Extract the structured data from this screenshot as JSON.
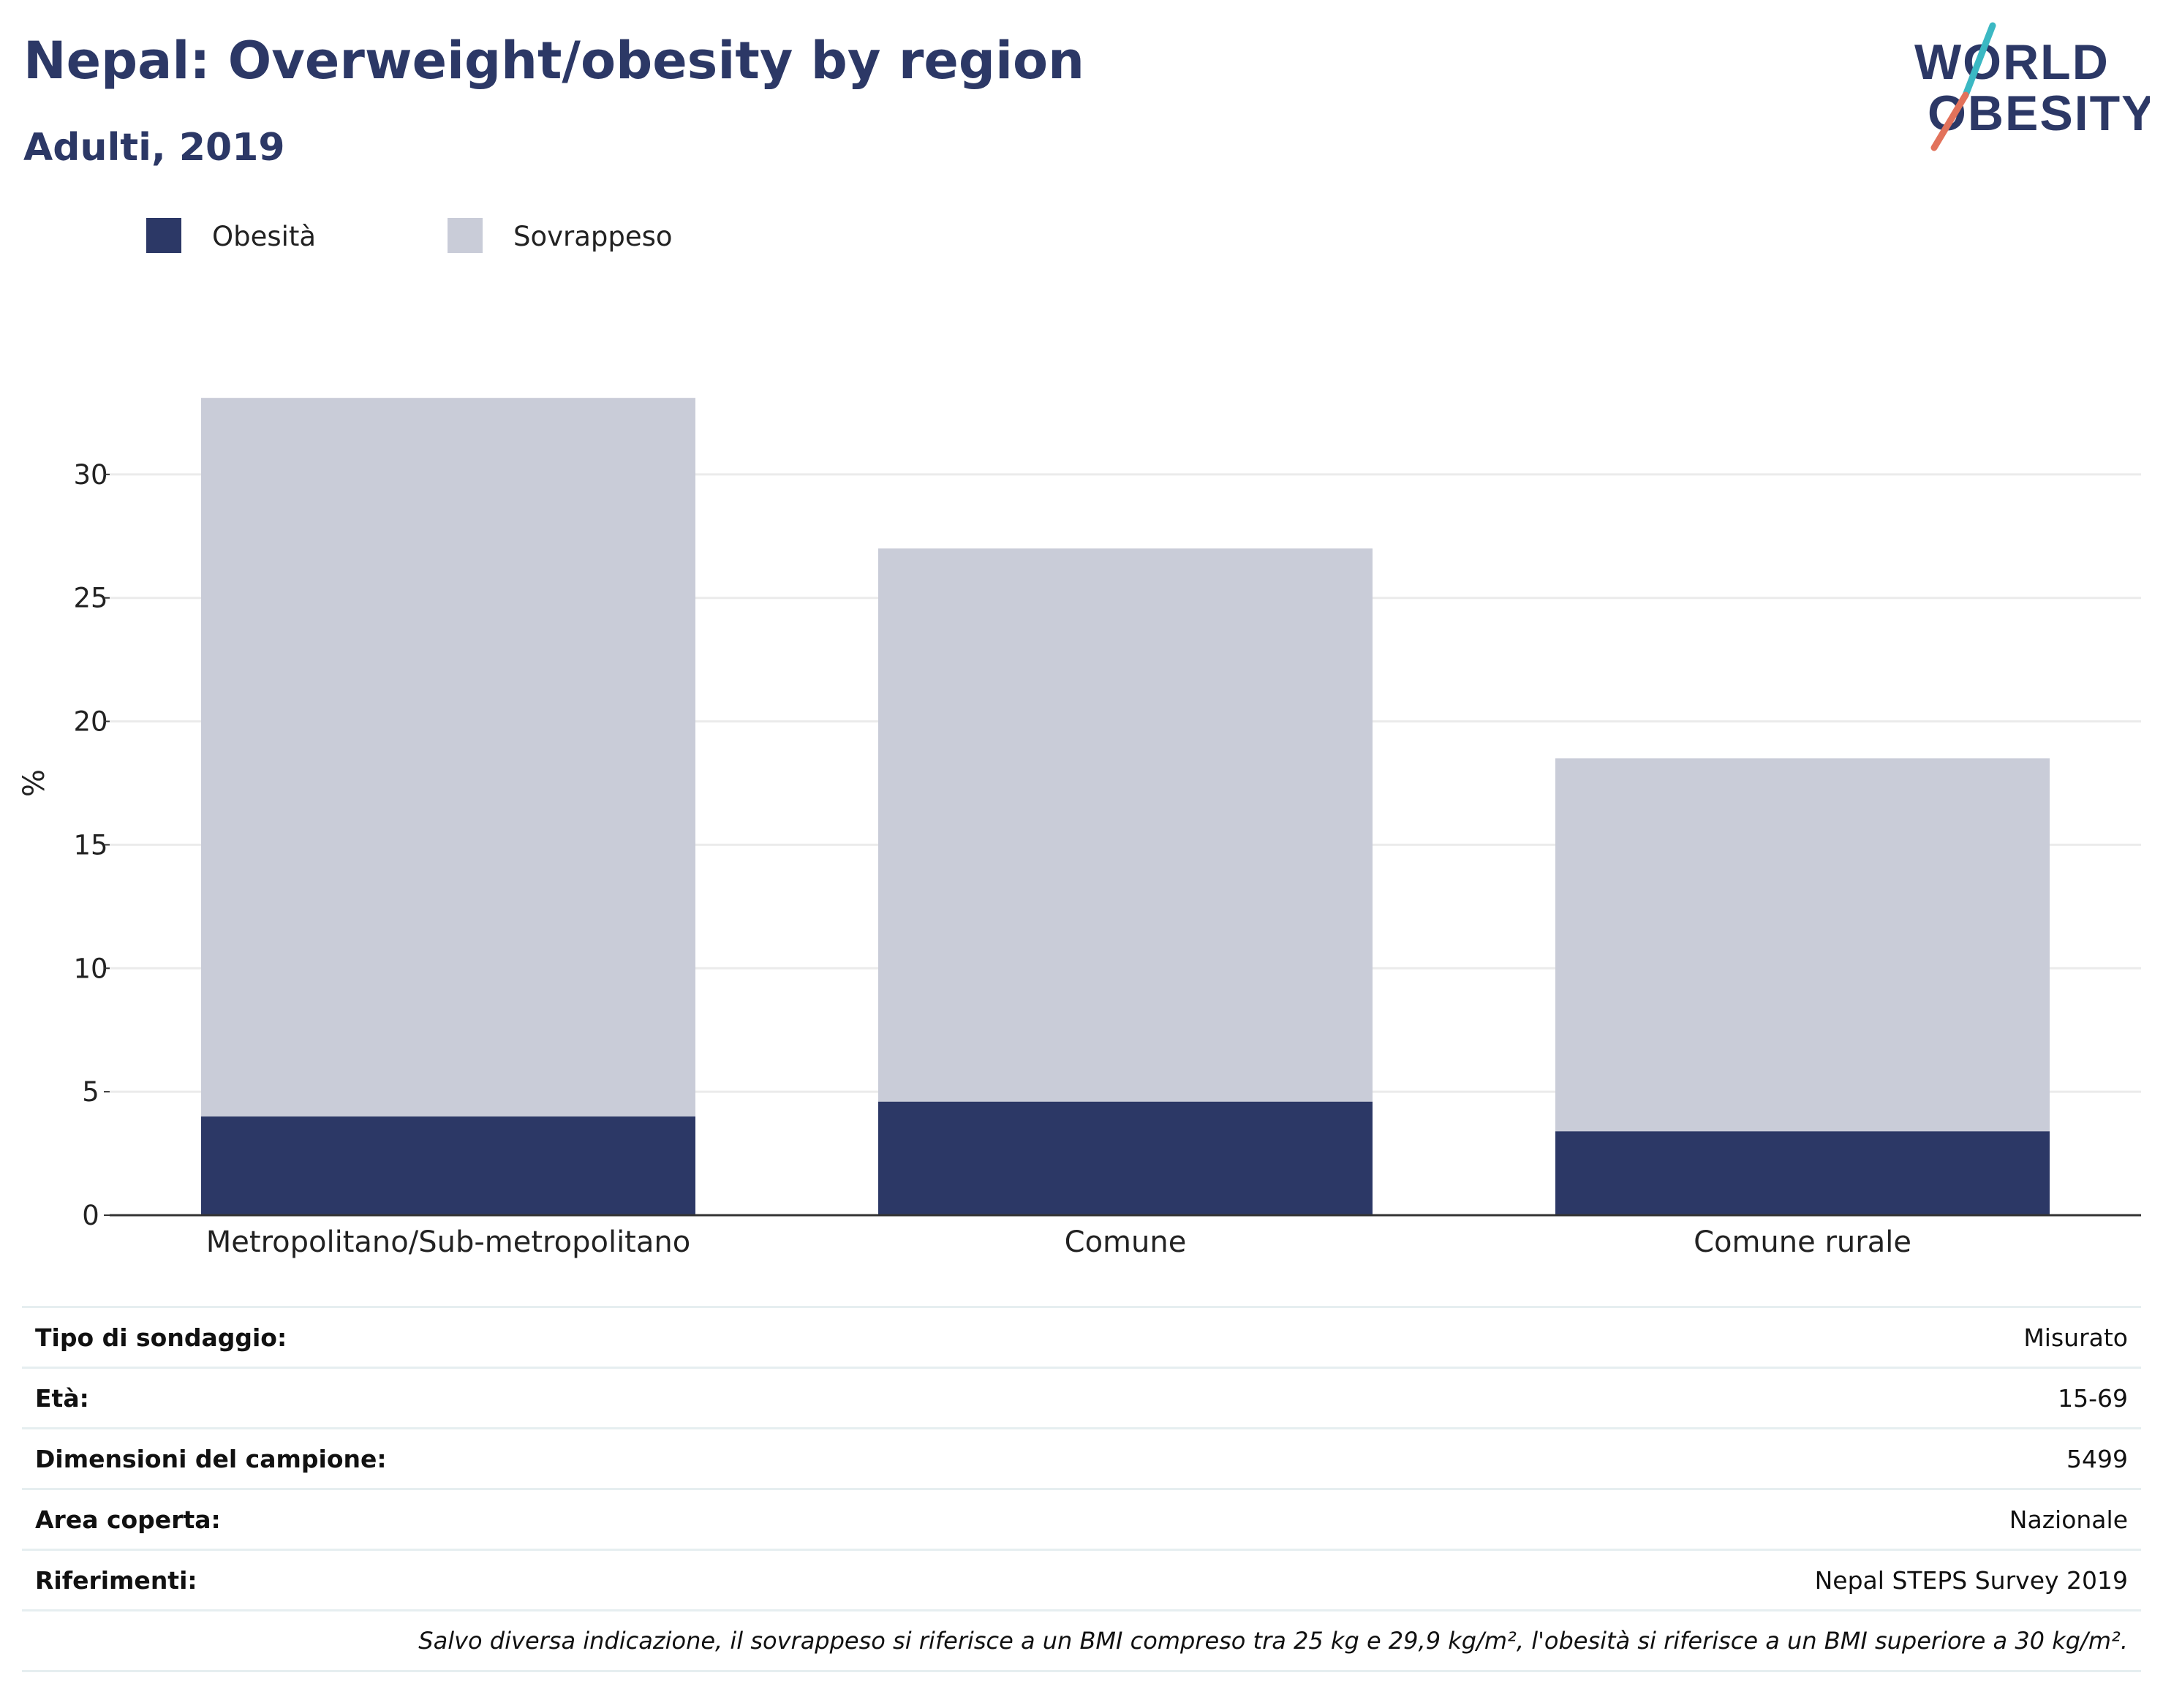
{
  "header": {
    "title": "Nepal: Overweight/obesity by region",
    "subtitle": "Adulti, 2019"
  },
  "logo": {
    "line1": "WORLD",
    "line2": "OBESITY",
    "colors": {
      "text": "#2c3866",
      "slash_top": "#3bb8c3",
      "slash_bottom": "#e2725b"
    }
  },
  "legend": {
    "items": [
      {
        "label": "Obesità",
        "color": "#2c3866"
      },
      {
        "label": "Sovrappeso",
        "color": "#c9ccd8"
      }
    ]
  },
  "chart_data": {
    "type": "bar",
    "stacked": true,
    "categories": [
      "Metropolitano/Sub-metropolitano",
      "Comune",
      "Comune rurale"
    ],
    "series": [
      {
        "name": "Obesità",
        "color": "#2c3866",
        "values": [
          4.0,
          4.6,
          3.4
        ]
      },
      {
        "name": "Sovrappeso",
        "color": "#c9ccd8",
        "values": [
          29.1,
          22.4,
          15.1
        ]
      }
    ],
    "ylabel": "%",
    "ylim": [
      0,
      35
    ],
    "yticks": [
      0,
      5,
      10,
      15,
      20,
      25,
      30
    ],
    "grid": true,
    "legend_position": "top-left"
  },
  "info_table": {
    "rows": [
      {
        "label": "Tipo di sondaggio:",
        "value": "Misurato"
      },
      {
        "label": "Età:",
        "value": "15-69"
      },
      {
        "label": "Dimensioni del campione:",
        "value": "5499"
      },
      {
        "label": "Area coperta:",
        "value": "Nazionale"
      },
      {
        "label": "Riferimenti:",
        "value": "Nepal STEPS Survey 2019"
      }
    ],
    "note": "Salvo diversa indicazione, il sovrappeso si riferisce a un BMI compreso tra 25 kg e 29,9 kg/m², l'obesità si riferisce a un BMI superiore a 30 kg/m²."
  }
}
